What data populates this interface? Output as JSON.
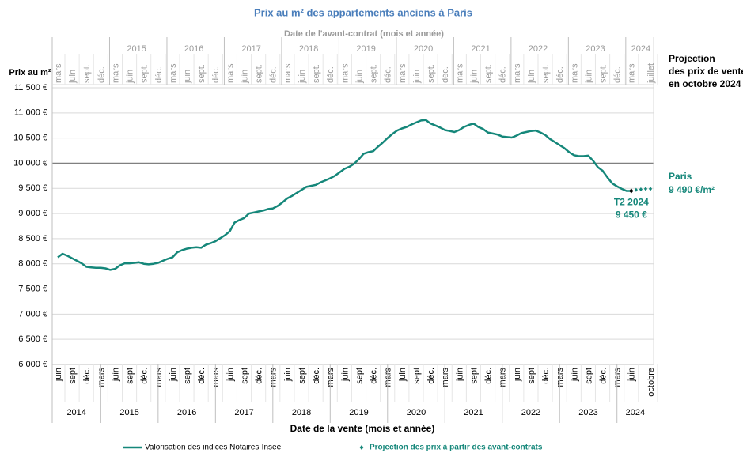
{
  "chart_data": {
    "type": "line",
    "title": "Prix au m² des appartements anciens à Paris",
    "top_axis_title": "Date de l'avant-contrat  (mois et année)",
    "x_axis_title": "Date de la vente (mois et année)",
    "y_axis_title": "Prix au m²",
    "categories": [
      "juin",
      null,
      null,
      "sept",
      null,
      null,
      "déc.",
      null,
      null,
      "mars",
      null,
      null,
      "juin",
      null,
      null,
      "sept",
      null,
      null,
      "déc.",
      null,
      null,
      "mars",
      null,
      null,
      "juin",
      null,
      null,
      "sept",
      null,
      null,
      "déc.",
      null,
      null,
      "mars",
      null,
      null,
      "juin",
      null,
      null,
      "sept",
      null,
      null,
      "déc.",
      null,
      null,
      "mars",
      null,
      null,
      "juin",
      null,
      null,
      "sept",
      null,
      null,
      "déc.",
      null,
      null,
      "mars",
      null,
      null,
      "juin",
      null,
      null,
      "sept",
      null,
      null,
      "déc.",
      null,
      null,
      "mars",
      null,
      null,
      "juin",
      null,
      null,
      "sept",
      null,
      null,
      "déc.",
      null,
      null,
      "mars",
      null,
      null,
      "juin",
      null,
      null,
      "sept",
      null,
      null,
      "déc.",
      null,
      null,
      "mars",
      null,
      null,
      "juin",
      null,
      null,
      "sept",
      null,
      null,
      "déc.",
      null,
      null,
      "mars",
      null,
      null,
      "juin",
      null,
      null,
      "sept",
      null,
      null,
      "déc.",
      null,
      null,
      "mars",
      null,
      null,
      "juin",
      null,
      null,
      null,
      "octobre"
    ],
    "years": [
      "2014",
      "2015",
      "2016",
      "2017",
      "2018",
      "2019",
      "2020",
      "2021",
      "2022",
      "2023",
      "2024"
    ],
    "top_categories": [
      "mars",
      null,
      null,
      "juin",
      null,
      null,
      "sept.",
      null,
      null,
      "déc.",
      null,
      null,
      "mars",
      null,
      null,
      "juin",
      null,
      null,
      "sept.",
      null,
      null,
      "déc.",
      null,
      null,
      "mars",
      null,
      null,
      "juin",
      null,
      null,
      "sept.",
      null,
      null,
      "déc.",
      null,
      null,
      "mars",
      null,
      null,
      "juin",
      null,
      null,
      "sept.",
      null,
      null,
      "déc.",
      null,
      null,
      "mars",
      null,
      null,
      "juin",
      null,
      null,
      "sept.",
      null,
      null,
      "déc.",
      null,
      null,
      "mars",
      null,
      null,
      "juin",
      null,
      null,
      "sept.",
      null,
      null,
      "déc.",
      null,
      null,
      "mars",
      null,
      null,
      "juin",
      null,
      null,
      "sept.",
      null,
      null,
      "déc.",
      null,
      null,
      "mars",
      null,
      null,
      "juin",
      null,
      null,
      "sept.",
      null,
      null,
      "déc.",
      null,
      null,
      "mars",
      null,
      null,
      "juin",
      null,
      null,
      "sept.",
      null,
      null,
      "déc.",
      null,
      null,
      "mars",
      null,
      null,
      "juin",
      null,
      null,
      "sept.",
      null,
      null,
      "déc.",
      null,
      null,
      "mars",
      null,
      null,
      null,
      "juillet"
    ],
    "top_years": [
      "2015",
      "2016",
      "2017",
      "2018",
      "2019",
      "2020",
      "2021",
      "2022",
      "2023",
      "2024"
    ],
    "series": [
      {
        "name": "Valorisation des indices Notaires-Insee",
        "color": "#15877a",
        "values": [
          8130,
          8200,
          8160,
          8110,
          8060,
          8010,
          7940,
          7930,
          7920,
          7920,
          7910,
          7880,
          7900,
          7970,
          8010,
          8010,
          8020,
          8030,
          8000,
          7990,
          8000,
          8020,
          8060,
          8100,
          8130,
          8230,
          8270,
          8300,
          8320,
          8330,
          8320,
          8380,
          8410,
          8450,
          8510,
          8570,
          8650,
          8820,
          8870,
          8910,
          9000,
          9020,
          9040,
          9060,
          9090,
          9100,
          9150,
          9220,
          9300,
          9350,
          9410,
          9470,
          9530,
          9550,
          9570,
          9620,
          9660,
          9700,
          9750,
          9820,
          9890,
          9930,
          9990,
          10080,
          10190,
          10220,
          10240,
          10330,
          10410,
          10500,
          10580,
          10650,
          10690,
          10720,
          10770,
          10810,
          10850,
          10860,
          10790,
          10750,
          10710,
          10660,
          10640,
          10620,
          10660,
          10720,
          10760,
          10790,
          10720,
          10680,
          10610,
          10590,
          10570,
          10530,
          10520,
          10510,
          10550,
          10600,
          10620,
          10640,
          10650,
          10610,
          10560,
          10480,
          10420,
          10360,
          10300,
          10220,
          10160,
          10140,
          10140,
          10150,
          10050,
          9920,
          9850,
          9720,
          9600,
          9540,
          9490,
          9450,
          9450,
          null,
          null,
          null,
          null
        ]
      },
      {
        "name": "Projection des prix à partir des avant-contrats",
        "color": "#15877a",
        "values": [
          null,
          null,
          null,
          null,
          null,
          null,
          null,
          null,
          null,
          null,
          null,
          null,
          null,
          null,
          null,
          null,
          null,
          null,
          null,
          null,
          null,
          null,
          null,
          null,
          null,
          null,
          null,
          null,
          null,
          null,
          null,
          null,
          null,
          null,
          null,
          null,
          null,
          null,
          null,
          null,
          null,
          null,
          null,
          null,
          null,
          null,
          null,
          null,
          null,
          null,
          null,
          null,
          null,
          null,
          null,
          null,
          null,
          null,
          null,
          null,
          null,
          null,
          null,
          null,
          null,
          null,
          null,
          null,
          null,
          null,
          null,
          null,
          null,
          null,
          null,
          null,
          null,
          null,
          null,
          null,
          null,
          null,
          null,
          null,
          null,
          null,
          null,
          null,
          null,
          null,
          null,
          null,
          null,
          null,
          null,
          null,
          null,
          null,
          null,
          null,
          null,
          null,
          null,
          null,
          null,
          null,
          null,
          null,
          null,
          null,
          null,
          null,
          null,
          null,
          null,
          null,
          null,
          null,
          null,
          null,
          null,
          9470,
          9480,
          9490,
          9490
        ]
      }
    ],
    "ylim": [
      6000,
      11500
    ],
    "yticks": [
      {
        "value": 6000,
        "label": "6 000 €"
      },
      {
        "value": 6500,
        "label": "6 500 €"
      },
      {
        "value": 7000,
        "label": "7 000 €"
      },
      {
        "value": 7500,
        "label": "7 500 €"
      },
      {
        "value": 8000,
        "label": "8 000 €"
      },
      {
        "value": 8500,
        "label": "8 500 €"
      },
      {
        "value": 9000,
        "label": "9 000 €"
      },
      {
        "value": 9500,
        "label": "9 500 €"
      },
      {
        "value": 10000,
        "label": "10 000 €"
      },
      {
        "value": 10500,
        "label": "10 500 €"
      },
      {
        "value": 11000,
        "label": "11 000 €"
      },
      {
        "value": 11500,
        "label": "11 500 €"
      }
    ],
    "grid": true,
    "reference_line": 10000,
    "annotation": {
      "title": "T2 2024",
      "value_label": "9 450 €"
    },
    "side_note": [
      "Projection",
      "des prix de vente",
      "en octobre 2024 :"
    ],
    "projection_label": {
      "name": "Paris",
      "value_label": "9 490 €/m²"
    },
    "legend": "bottom"
  }
}
